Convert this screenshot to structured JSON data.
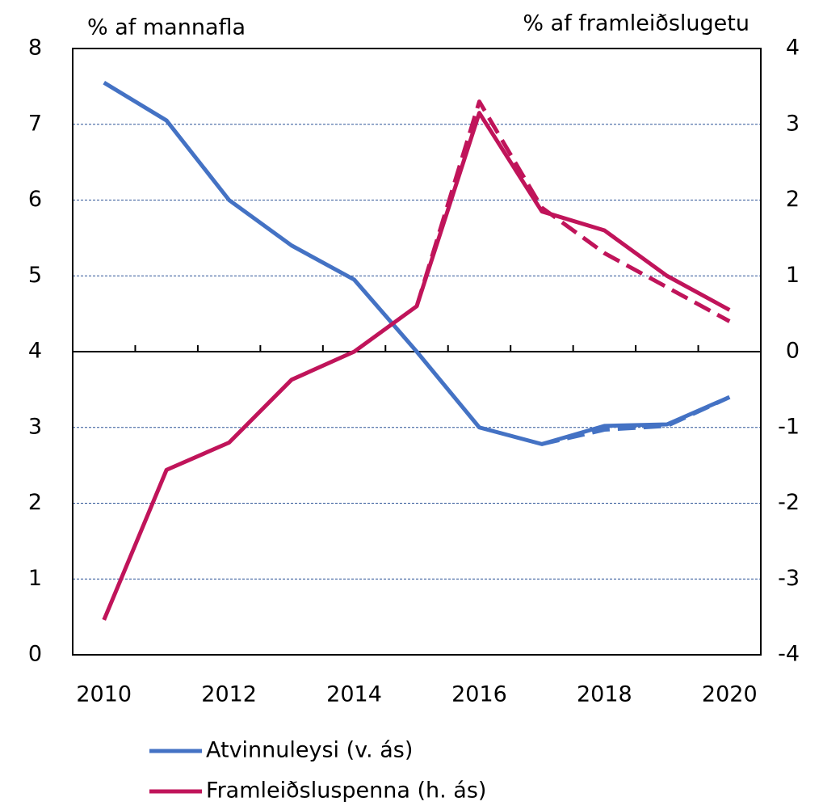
{
  "chart_data": {
    "type": "line",
    "ylabel": "% af mannafla",
    "y2label": "% af framleiðslugetu",
    "x": [
      2010,
      2011,
      2012,
      2013,
      2014,
      2015,
      2016,
      2017,
      2018,
      2019,
      2020
    ],
    "xlim": [
      2009.5,
      2020.5
    ],
    "xticks": [
      2010,
      2012,
      2014,
      2016,
      2018,
      2020
    ],
    "ylim": [
      0,
      8
    ],
    "yticks": [
      0,
      1,
      2,
      3,
      4,
      5,
      6,
      7,
      8
    ],
    "y2lim": [
      -4,
      4
    ],
    "y2ticks": [
      -4,
      -3,
      -2,
      -1,
      0,
      1,
      2,
      3,
      4
    ],
    "grid": true,
    "zero_line": 0,
    "series": [
      {
        "name": "Atvinnuleysi (v. ás)",
        "color": "#4472c4",
        "axis": "y",
        "values": [
          7.55,
          7.05,
          6.0,
          5.4,
          4.95,
          4.0,
          3.0,
          2.78,
          3.02,
          3.04,
          3.4
        ]
      },
      {
        "name": "Framleiðsluspenna (h. ás)",
        "color": "#c0145a",
        "axis": "y2",
        "values": [
          -3.54,
          -1.56,
          -1.2,
          -0.37,
          0,
          0.6,
          3.15,
          1.85,
          1.6,
          1.0,
          0.55
        ]
      },
      {
        "color": "#4472c4",
        "axis": "y",
        "dash": true,
        "values": [
          null,
          null,
          null,
          null,
          null,
          null,
          null,
          2.78,
          2.97,
          3.02,
          3.4
        ]
      },
      {
        "color": "#c0145a",
        "axis": "y2",
        "dash": true,
        "values": [
          null,
          null,
          null,
          null,
          null,
          0.6,
          3.3,
          1.9,
          1.3,
          0.85,
          0.4
        ]
      }
    ]
  }
}
